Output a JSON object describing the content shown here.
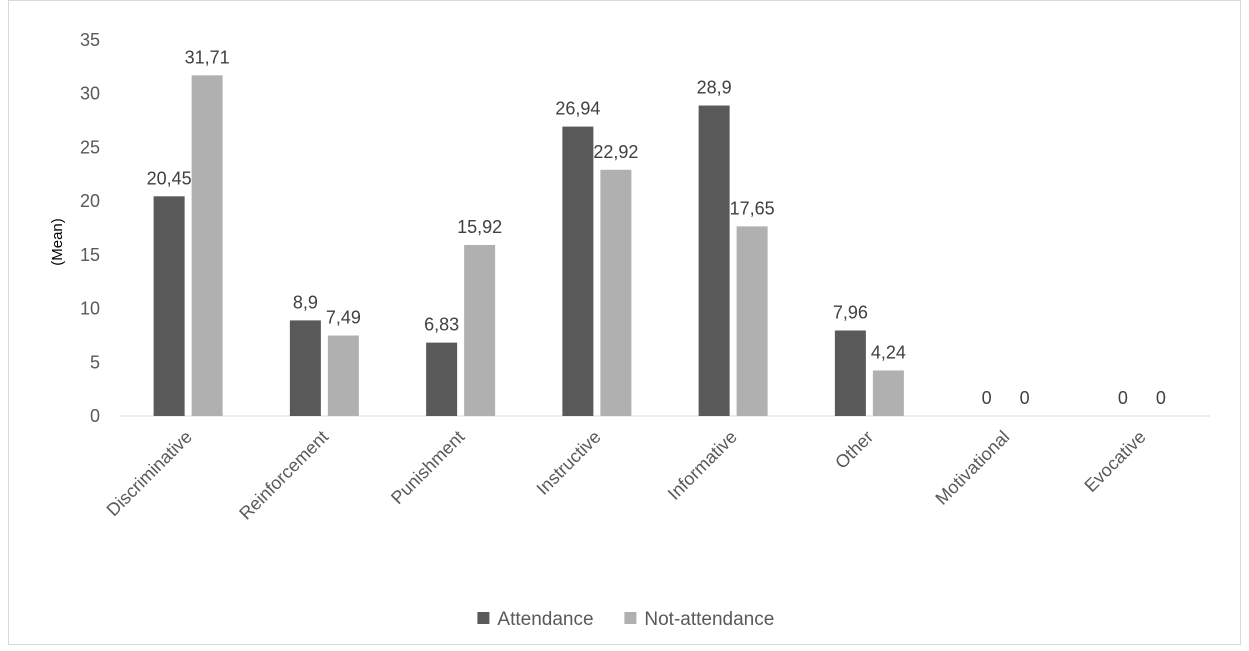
{
  "chart_data": {
    "type": "bar",
    "title": "",
    "xlabel": "",
    "ylabel": "(Mean)",
    "ylim": [
      0,
      35
    ],
    "yticks": [
      0,
      5,
      10,
      15,
      20,
      25,
      30,
      35
    ],
    "grid": false,
    "legend_position": "bottom",
    "categories": [
      "Discriminative",
      "Reinforcement",
      "Punishment",
      "Instructive",
      "Informative",
      "Other",
      "Motivational",
      "Evocative"
    ],
    "series": [
      {
        "name": "Attendance",
        "color": "#595959",
        "values": [
          20.45,
          8.9,
          6.83,
          26.94,
          28.9,
          7.96,
          0,
          0
        ],
        "labels": [
          "20,45",
          "8,9",
          "6,83",
          "26,94",
          "28,9",
          "7,96",
          "0",
          "0"
        ]
      },
      {
        "name": "Not-attendance",
        "color": "#b0b0b0",
        "values": [
          31.71,
          7.49,
          15.92,
          22.92,
          17.65,
          4.24,
          0,
          0
        ],
        "labels": [
          "31,71",
          "7,49",
          "15,92",
          "22,92",
          "17,65",
          "4,24",
          "0",
          "0"
        ]
      }
    ]
  }
}
